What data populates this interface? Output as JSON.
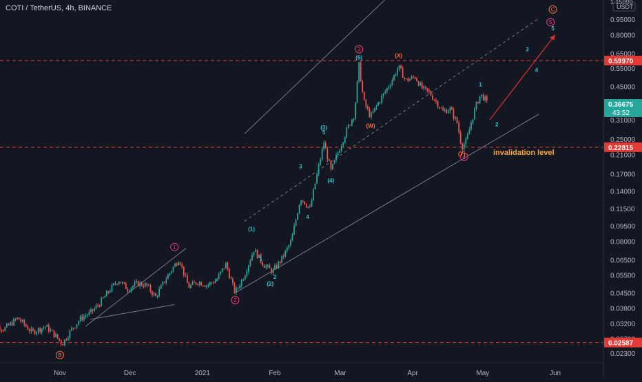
{
  "header": {
    "symbol_title": "COTI / TetherUS, 4h, BINANCE"
  },
  "colors": {
    "background": "#131722",
    "axis_text": "#b2b5be",
    "candle_up": "#26a69a",
    "candle_down": "#ef5350",
    "channel": "#787b86",
    "level_line": "#e53935",
    "wave_teal": "#26c6da",
    "wave_pink": "#ec407a",
    "wave_orange": "#ff7043",
    "invalidation_text": "#ffa726",
    "projection_arrow": "#d32f2f",
    "price_tag_red": "#e53935",
    "price_tag_green": "#26a69a"
  },
  "chart_data": {
    "type": "candlestick",
    "scale": "log",
    "y_axis_ticks": [
      "0.95000",
      "0.80000",
      "0.65000",
      "0.55000",
      "0.45000",
      "0.31000",
      "0.25000",
      "0.21000",
      "0.17000",
      "0.14000",
      "0.11500",
      "0.09500",
      "0.08000",
      "0.06500",
      "0.05500",
      "0.04500",
      "0.03800",
      "0.03200",
      "0.02700",
      "0.02300"
    ],
    "y_axis_partial_top": [
      "1.15000",
      "USDT"
    ],
    "x_axis_ticks": [
      "Nov",
      "Dec",
      "2021",
      "Feb",
      "Mar",
      "Apr",
      "May",
      "Jun"
    ],
    "horizontal_levels": [
      {
        "label": "0.59970",
        "value": 0.5997
      },
      {
        "label": "0.22815",
        "value": 0.22815
      },
      {
        "label": "0.02587",
        "value": 0.02587
      }
    ],
    "current_price": {
      "label": "0.36675",
      "countdown": "43:52",
      "value": 0.36675
    },
    "annotations": {
      "invalidation": "invalidation level",
      "wave_labels": [
        {
          "text": "B",
          "style": "circle",
          "color": "orange",
          "date": "2020-11-01",
          "price": 0.0225
        },
        {
          "text": "1",
          "style": "circle",
          "color": "pink",
          "date": "2020-12-20",
          "price": 0.075
        },
        {
          "text": "2",
          "style": "circle",
          "color": "pink",
          "date": "2021-01-15",
          "price": 0.0415
        },
        {
          "text": "3",
          "style": "circle",
          "color": "pink",
          "date": "2021-03-09",
          "price": 0.68
        },
        {
          "text": "4",
          "style": "circle",
          "color": "pink",
          "date": "2021-04-23",
          "price": 0.205
        },
        {
          "text": "5",
          "style": "circle",
          "color": "pink",
          "date": "2021-05-30",
          "price": 0.92
        },
        {
          "text": "C",
          "style": "circle",
          "color": "orange",
          "date": "2021-05-31",
          "price": 1.06
        },
        {
          "text": "(1)",
          "style": "plain",
          "color": "teal",
          "date": "2021-01-22",
          "price": 0.092
        },
        {
          "text": "(2)",
          "style": "plain",
          "color": "teal",
          "date": "2021-01-30",
          "price": 0.05
        },
        {
          "text": "(3)",
          "style": "plain",
          "color": "teal",
          "date": "2021-02-22",
          "price": 0.285
        },
        {
          "text": "(4)",
          "style": "plain",
          "color": "teal",
          "date": "2021-02-25",
          "price": 0.158
        },
        {
          "text": "(5)",
          "style": "plain",
          "color": "teal",
          "date": "2021-03-09",
          "price": 0.62
        },
        {
          "text": "(W)",
          "style": "plain",
          "color": "orange",
          "date": "2021-03-14",
          "price": 0.29
        },
        {
          "text": "(X)",
          "style": "plain",
          "color": "orange",
          "date": "2021-03-26",
          "price": 0.635
        },
        {
          "text": "(Y)",
          "style": "plain",
          "color": "orange",
          "date": "2021-04-22",
          "price": 0.213
        },
        {
          "text": "1",
          "style": "plain",
          "color": "teal",
          "date": "2021-01-26",
          "price": 0.066
        },
        {
          "text": "2",
          "style": "plain",
          "color": "teal",
          "date": "2021-02-01",
          "price": 0.054
        },
        {
          "text": "3",
          "style": "plain",
          "color": "teal",
          "date": "2021-02-12",
          "price": 0.185
        },
        {
          "text": "4",
          "style": "plain",
          "color": "teal",
          "date": "2021-02-15",
          "price": 0.105
        },
        {
          "text": "5",
          "style": "plain",
          "color": "teal",
          "date": "2021-02-22",
          "price": 0.27
        },
        {
          "text": "1",
          "style": "plain",
          "color": "teal",
          "date": "2021-04-30",
          "price": 0.46
        },
        {
          "text": "2",
          "style": "plain",
          "color": "teal",
          "date": "2021-05-07",
          "price": 0.295
        },
        {
          "text": "3",
          "style": "plain",
          "color": "teal",
          "date": "2021-05-20",
          "price": 0.68
        },
        {
          "text": "4",
          "style": "plain",
          "color": "teal",
          "date": "2021-05-24",
          "price": 0.54
        },
        {
          "text": "5",
          "style": "plain",
          "color": "teal",
          "date": "2021-05-31",
          "price": 0.86
        }
      ]
    },
    "price_path": [
      [
        "2020-10-01",
        0.033
      ],
      [
        "2020-10-08",
        0.03
      ],
      [
        "2020-10-14",
        0.034
      ],
      [
        "2020-10-20",
        0.029
      ],
      [
        "2020-10-26",
        0.031
      ],
      [
        "2020-10-30",
        0.028
      ],
      [
        "2020-11-02",
        0.0255
      ],
      [
        "2020-11-06",
        0.03
      ],
      [
        "2020-11-10",
        0.034
      ],
      [
        "2020-11-14",
        0.036
      ],
      [
        "2020-11-18",
        0.04
      ],
      [
        "2020-11-22",
        0.046
      ],
      [
        "2020-11-26",
        0.052
      ],
      [
        "2020-11-30",
        0.047
      ],
      [
        "2020-12-04",
        0.05
      ],
      [
        "2020-12-08",
        0.049
      ],
      [
        "2020-12-12",
        0.043
      ],
      [
        "2020-12-16",
        0.052
      ],
      [
        "2020-12-20",
        0.061
      ],
      [
        "2020-12-22",
        0.066
      ],
      [
        "2020-12-26",
        0.048
      ],
      [
        "2020-12-30",
        0.051
      ],
      [
        "2021-01-03",
        0.049
      ],
      [
        "2021-01-07",
        0.052
      ],
      [
        "2021-01-11",
        0.062
      ],
      [
        "2021-01-15",
        0.045
      ],
      [
        "2021-01-19",
        0.055
      ],
      [
        "2021-01-23",
        0.073
      ],
      [
        "2021-01-27",
        0.062
      ],
      [
        "2021-01-31",
        0.057
      ],
      [
        "2021-02-04",
        0.066
      ],
      [
        "2021-02-08",
        0.08
      ],
      [
        "2021-02-12",
        0.13
      ],
      [
        "2021-02-16",
        0.115
      ],
      [
        "2021-02-20",
        0.19
      ],
      [
        "2021-02-22",
        0.24
      ],
      [
        "2021-02-25",
        0.175
      ],
      [
        "2021-02-28",
        0.215
      ],
      [
        "2021-03-04",
        0.28
      ],
      [
        "2021-03-07",
        0.33
      ],
      [
        "2021-03-09",
        0.57
      ],
      [
        "2021-03-11",
        0.38
      ],
      [
        "2021-03-14",
        0.32
      ],
      [
        "2021-03-17",
        0.37
      ],
      [
        "2021-03-20",
        0.42
      ],
      [
        "2021-03-23",
        0.48
      ],
      [
        "2021-03-26",
        0.56
      ],
      [
        "2021-03-29",
        0.48
      ],
      [
        "2021-04-02",
        0.5
      ],
      [
        "2021-04-05",
        0.44
      ],
      [
        "2021-04-08",
        0.42
      ],
      [
        "2021-04-11",
        0.38
      ],
      [
        "2021-04-14",
        0.34
      ],
      [
        "2021-04-17",
        0.35
      ],
      [
        "2021-04-20",
        0.3
      ],
      [
        "2021-04-22",
        0.228
      ],
      [
        "2021-04-24",
        0.245
      ],
      [
        "2021-04-26",
        0.3
      ],
      [
        "2021-04-28",
        0.36
      ],
      [
        "2021-04-30",
        0.41
      ],
      [
        "2021-05-02",
        0.39
      ],
      [
        "2021-05-03",
        0.367
      ]
    ]
  }
}
